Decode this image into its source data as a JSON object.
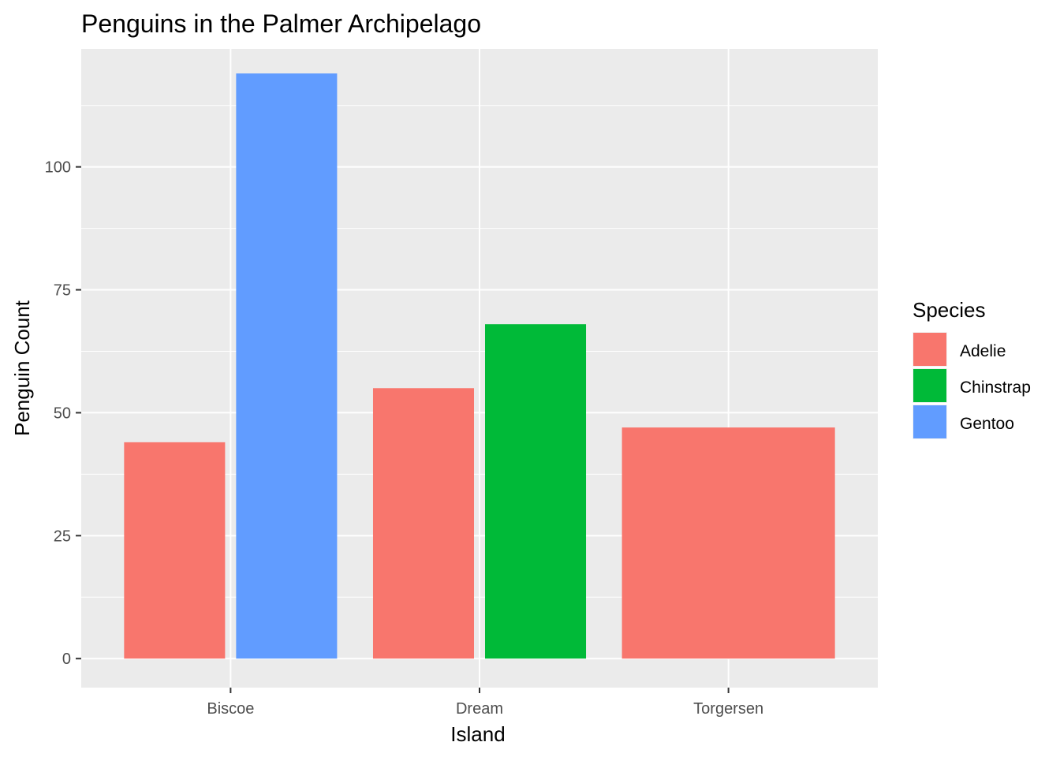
{
  "chart_data": {
    "type": "bar",
    "title": "Penguins in the Palmer Archipelago",
    "xlabel": "Island",
    "ylabel": "Penguin Count",
    "categories": [
      "Biscoe",
      "Dream",
      "Torgersen"
    ],
    "ylim": [
      -5.9,
      124
    ],
    "yticks": [
      0,
      25,
      50,
      75,
      100
    ],
    "grid": true,
    "legend": {
      "title": "Species",
      "position": "right",
      "entries": [
        "Adelie",
        "Chinstrap",
        "Gentoo"
      ]
    },
    "series": [
      {
        "name": "Adelie",
        "color": "#F8766D",
        "values": [
          44,
          55,
          47
        ]
      },
      {
        "name": "Chinstrap",
        "color": "#00BA38",
        "values": [
          0,
          68,
          0
        ]
      },
      {
        "name": "Gentoo",
        "color": "#619CFF",
        "values": [
          119,
          0,
          0
        ]
      }
    ]
  }
}
